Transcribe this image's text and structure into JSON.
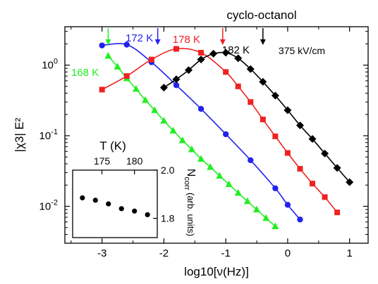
{
  "chart_data": [
    {
      "type": "scatter",
      "title": "cyclo-octanol",
      "annotation": "375 kV/cm",
      "xlabel": "log10[ν(Hz)]",
      "ylabel": "|χ3| E²",
      "xlim": [
        -3.6,
        1.3
      ],
      "ylim": [
        0.003,
        3.5
      ],
      "yscale": "log",
      "grid": false,
      "xticks": [
        -3,
        -2,
        -1,
        0,
        1
      ],
      "xtick_labels": [
        "-3",
        "-2",
        "-1",
        "0",
        "1"
      ],
      "yticks": [
        0.01,
        0.1,
        1
      ],
      "ytick_labels": [
        "10",
        "10",
        "10"
      ],
      "ytick_exponents": [
        "-2",
        "-1",
        "0"
      ],
      "series": [
        {
          "name": "168 K",
          "color": "#22ee22",
          "marker": "triangle",
          "x": [
            -2.9,
            -2.75,
            -2.6,
            -2.45,
            -2.3,
            -2.15,
            -2.0,
            -1.85,
            -1.7,
            -1.55,
            -1.4,
            -1.25,
            -1.1,
            -0.95,
            -0.8,
            -0.65,
            -0.5,
            -0.35,
            -0.2
          ],
          "y": [
            1.35,
            0.95,
            0.65,
            0.46,
            0.32,
            0.23,
            0.163,
            0.118,
            0.086,
            0.064,
            0.047,
            0.036,
            0.027,
            0.0205,
            0.0155,
            0.0118,
            0.009,
            0.0068,
            0.0052
          ],
          "peak_marker_x": -2.9
        },
        {
          "name": "172 K",
          "color": "#2222ee",
          "marker": "circle",
          "x": [
            -3.0,
            -2.6,
            -2.2,
            -1.8,
            -1.4,
            -1.0,
            -0.6,
            -0.2,
            0.0,
            0.2
          ],
          "y": [
            1.9,
            1.95,
            1.1,
            0.52,
            0.24,
            0.105,
            0.045,
            0.018,
            0.0105,
            0.0065
          ],
          "peak_marker_x": -2.1
        },
        {
          "name": "178 K",
          "color": "#ee2222",
          "marker": "square",
          "x": [
            -3.0,
            -2.6,
            -2.2,
            -1.8,
            -1.4,
            -1.0,
            -0.8,
            -0.6,
            -0.4,
            -0.2,
            0.0,
            0.2,
            0.4,
            0.6,
            0.8
          ],
          "y": [
            0.45,
            0.7,
            1.2,
            1.7,
            1.5,
            0.8,
            0.5,
            0.3,
            0.17,
            0.098,
            0.057,
            0.034,
            0.021,
            0.0135,
            0.0082
          ],
          "peak_marker_x": -1.05
        },
        {
          "name": "182 K",
          "color": "#000000",
          "marker": "diamond",
          "x": [
            -2.0,
            -1.8,
            -1.6,
            -1.4,
            -1.2,
            -1.0,
            -0.8,
            -0.6,
            -0.4,
            -0.2,
            0.0,
            0.2,
            0.4,
            0.6,
            0.8,
            1.0
          ],
          "y": [
            0.48,
            0.63,
            0.85,
            1.2,
            1.45,
            1.5,
            1.25,
            0.88,
            0.58,
            0.37,
            0.23,
            0.14,
            0.09,
            0.056,
            0.035,
            0.022
          ],
          "peak_marker_x": -0.4
        }
      ]
    },
    {
      "type": "scatter",
      "title": "",
      "xlabel": "T (K)",
      "ylabel": "N_corr (arb. units)",
      "xlim": [
        170.5,
        183.5
      ],
      "ylim": [
        1.72,
        2.0
      ],
      "xticks": [
        175,
        180
      ],
      "xtick_labels": [
        "175",
        "180"
      ],
      "yticks": [
        1.8,
        2.0
      ],
      "ytick_labels": [
        "1.8",
        "2.0"
      ],
      "ylabel_main": "N",
      "ylabel_sub": "corr",
      "ylabel_rest": " (arb. units)",
      "series": [
        {
          "name": "",
          "color": "#000000",
          "marker": "circle",
          "x": [
            172,
            174,
            176,
            178,
            180,
            182
          ],
          "y": [
            1.885,
            1.875,
            1.86,
            1.84,
            1.83,
            1.815
          ]
        }
      ]
    }
  ]
}
